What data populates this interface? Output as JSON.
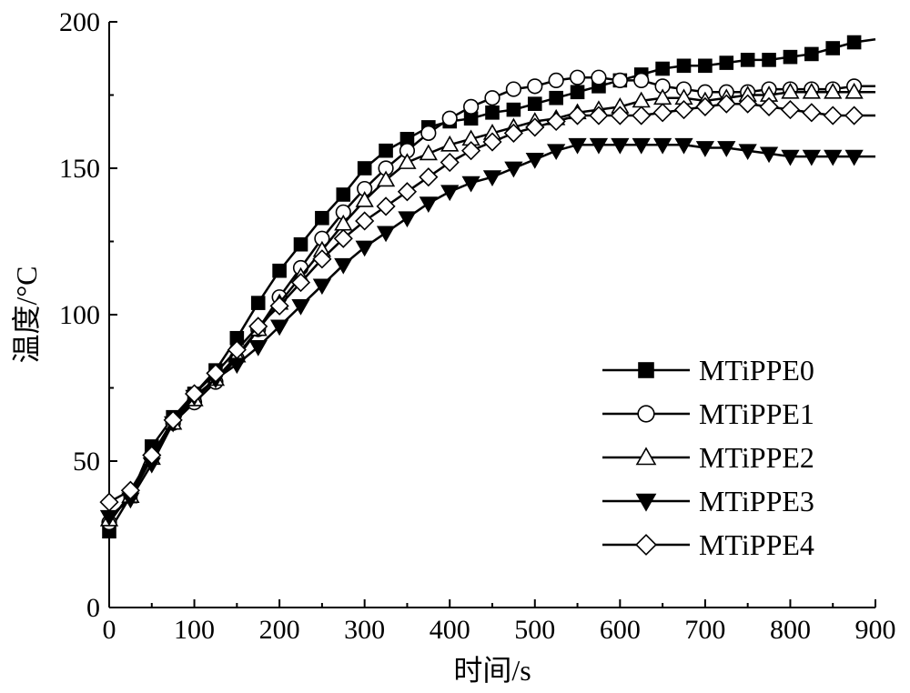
{
  "chart_data": {
    "type": "line",
    "title": "",
    "xlabel": "时间/s",
    "ylabel": "温度/°C",
    "xlim": [
      0,
      900
    ],
    "ylim": [
      0,
      200
    ],
    "xticks": [
      0,
      100,
      200,
      300,
      400,
      500,
      600,
      700,
      800,
      900
    ],
    "yticks": [
      0,
      50,
      100,
      150,
      200
    ],
    "grid": false,
    "legend_position": "bottom-right",
    "series": [
      {
        "name": "MTiPPE0",
        "marker": "square-filled",
        "x": [
          0,
          25,
          50,
          75,
          100,
          125,
          150,
          175,
          200,
          225,
          250,
          275,
          300,
          325,
          350,
          375,
          400,
          425,
          450,
          475,
          500,
          525,
          550,
          575,
          600,
          625,
          650,
          675,
          700,
          725,
          750,
          775,
          800,
          825,
          850,
          875,
          900
        ],
        "y": [
          26,
          38,
          55,
          65,
          73,
          81,
          92,
          104,
          115,
          124,
          133,
          141,
          150,
          156,
          160,
          164,
          166,
          167,
          169,
          170,
          172,
          174,
          176,
          178,
          180,
          182,
          184,
          185,
          185,
          186,
          187,
          187,
          188,
          189,
          191,
          193,
          194
        ]
      },
      {
        "name": "MTiPPE1",
        "marker": "circle-open",
        "x": [
          0,
          25,
          50,
          75,
          100,
          125,
          150,
          175,
          200,
          225,
          250,
          275,
          300,
          325,
          350,
          375,
          400,
          425,
          450,
          475,
          500,
          525,
          550,
          575,
          600,
          625,
          650,
          675,
          700,
          725,
          750,
          775,
          800,
          825,
          850,
          875,
          900
        ],
        "y": [
          29,
          39,
          52,
          63,
          70,
          77,
          85,
          95,
          106,
          116,
          126,
          135,
          143,
          150,
          156,
          162,
          167,
          171,
          174,
          177,
          178,
          180,
          181,
          181,
          180,
          180,
          178,
          177,
          176,
          176,
          176,
          177,
          177,
          177,
          177,
          178,
          178
        ]
      },
      {
        "name": "MTiPPE2",
        "marker": "triangle-up-open",
        "x": [
          0,
          25,
          50,
          75,
          100,
          125,
          150,
          175,
          200,
          225,
          250,
          275,
          300,
          325,
          350,
          375,
          400,
          425,
          450,
          475,
          500,
          525,
          550,
          575,
          600,
          625,
          650,
          675,
          700,
          725,
          750,
          775,
          800,
          825,
          850,
          875,
          900
        ],
        "y": [
          30,
          38,
          51,
          63,
          71,
          78,
          86,
          95,
          104,
          113,
          122,
          131,
          139,
          146,
          152,
          155,
          158,
          160,
          162,
          164,
          166,
          167,
          169,
          170,
          171,
          173,
          174,
          174,
          173,
          174,
          175,
          175,
          176,
          176,
          176,
          176,
          176
        ]
      },
      {
        "name": "MTiPPE3",
        "marker": "triangle-down-filled",
        "x": [
          0,
          25,
          50,
          75,
          100,
          125,
          150,
          175,
          200,
          225,
          250,
          275,
          300,
          325,
          350,
          375,
          400,
          425,
          450,
          475,
          500,
          525,
          550,
          575,
          600,
          625,
          650,
          675,
          700,
          725,
          750,
          775,
          800,
          825,
          850,
          875,
          900
        ],
        "y": [
          31,
          37,
          49,
          63,
          72,
          78,
          83,
          89,
          96,
          103,
          110,
          117,
          123,
          128,
          133,
          138,
          142,
          145,
          147,
          150,
          153,
          156,
          158,
          158,
          158,
          158,
          158,
          158,
          157,
          157,
          156,
          155,
          154,
          154,
          154,
          154,
          154
        ]
      },
      {
        "name": "MTiPPE4",
        "marker": "diamond-open",
        "x": [
          0,
          25,
          50,
          75,
          100,
          125,
          150,
          175,
          200,
          225,
          250,
          275,
          300,
          325,
          350,
          375,
          400,
          425,
          450,
          475,
          500,
          525,
          550,
          575,
          600,
          625,
          650,
          675,
          700,
          725,
          750,
          775,
          800,
          825,
          850,
          875,
          900
        ],
        "y": [
          36,
          40,
          52,
          64,
          73,
          80,
          88,
          96,
          103,
          111,
          119,
          126,
          132,
          137,
          142,
          147,
          152,
          156,
          159,
          162,
          164,
          166,
          168,
          168,
          168,
          168,
          169,
          170,
          171,
          172,
          172,
          171,
          170,
          169,
          168,
          168,
          168
        ]
      }
    ]
  }
}
